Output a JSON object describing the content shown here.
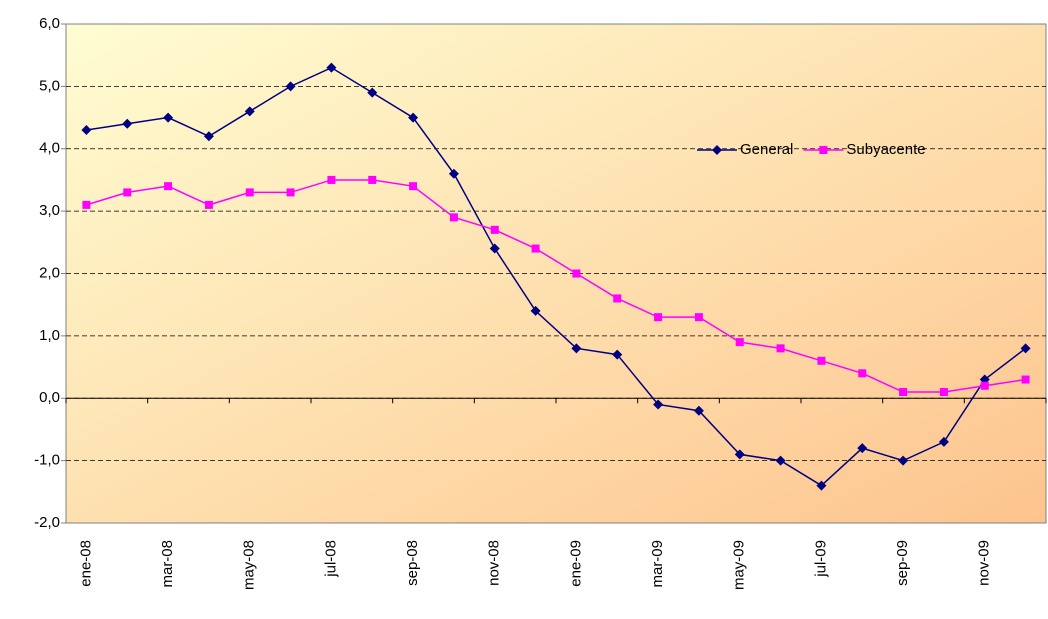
{
  "chart_data": {
    "type": "line",
    "categories": [
      "ene-08",
      null,
      "mar-08",
      null,
      "may-08",
      null,
      "jul-08",
      null,
      "sep-08",
      null,
      "nov-08",
      null,
      "ene-09",
      null,
      "mar-09",
      null,
      "may-09",
      null,
      "jul-09",
      null,
      "sep-09",
      null,
      "nov-09",
      null
    ],
    "series": [
      {
        "name": "General",
        "color": "#000080",
        "marker": "diamond",
        "values": [
          4.3,
          4.4,
          4.5,
          4.2,
          4.6,
          5.0,
          5.3,
          4.9,
          4.5,
          3.6,
          2.4,
          1.4,
          0.8,
          0.7,
          -0.1,
          -0.2,
          -0.9,
          -1.0,
          -1.4,
          -0.8,
          -1.0,
          -0.7,
          0.3,
          0.8
        ]
      },
      {
        "name": "Subyacente",
        "color": "#ff00ff",
        "marker": "square",
        "values": [
          3.1,
          3.3,
          3.4,
          3.1,
          3.3,
          3.3,
          3.5,
          3.5,
          3.4,
          2.9,
          2.7,
          2.4,
          2.0,
          1.6,
          1.3,
          1.3,
          0.9,
          0.8,
          0.6,
          0.4,
          0.1,
          0.1,
          0.2,
          0.3
        ]
      }
    ],
    "ylim": [
      -2,
      6
    ],
    "yticks": [
      {
        "value": -2,
        "label": "-2,0"
      },
      {
        "value": -1,
        "label": "-1,0"
      },
      {
        "value": 0,
        "label": "0,0"
      },
      {
        "value": 1,
        "label": "1,0"
      },
      {
        "value": 2,
        "label": "2,0"
      },
      {
        "value": 3,
        "label": "3,0"
      },
      {
        "value": 4,
        "label": "4,0"
      },
      {
        "value": 5,
        "label": "5,0"
      },
      {
        "value": 6,
        "label": "6,0"
      }
    ],
    "grid": true,
    "legend": "upper right"
  }
}
